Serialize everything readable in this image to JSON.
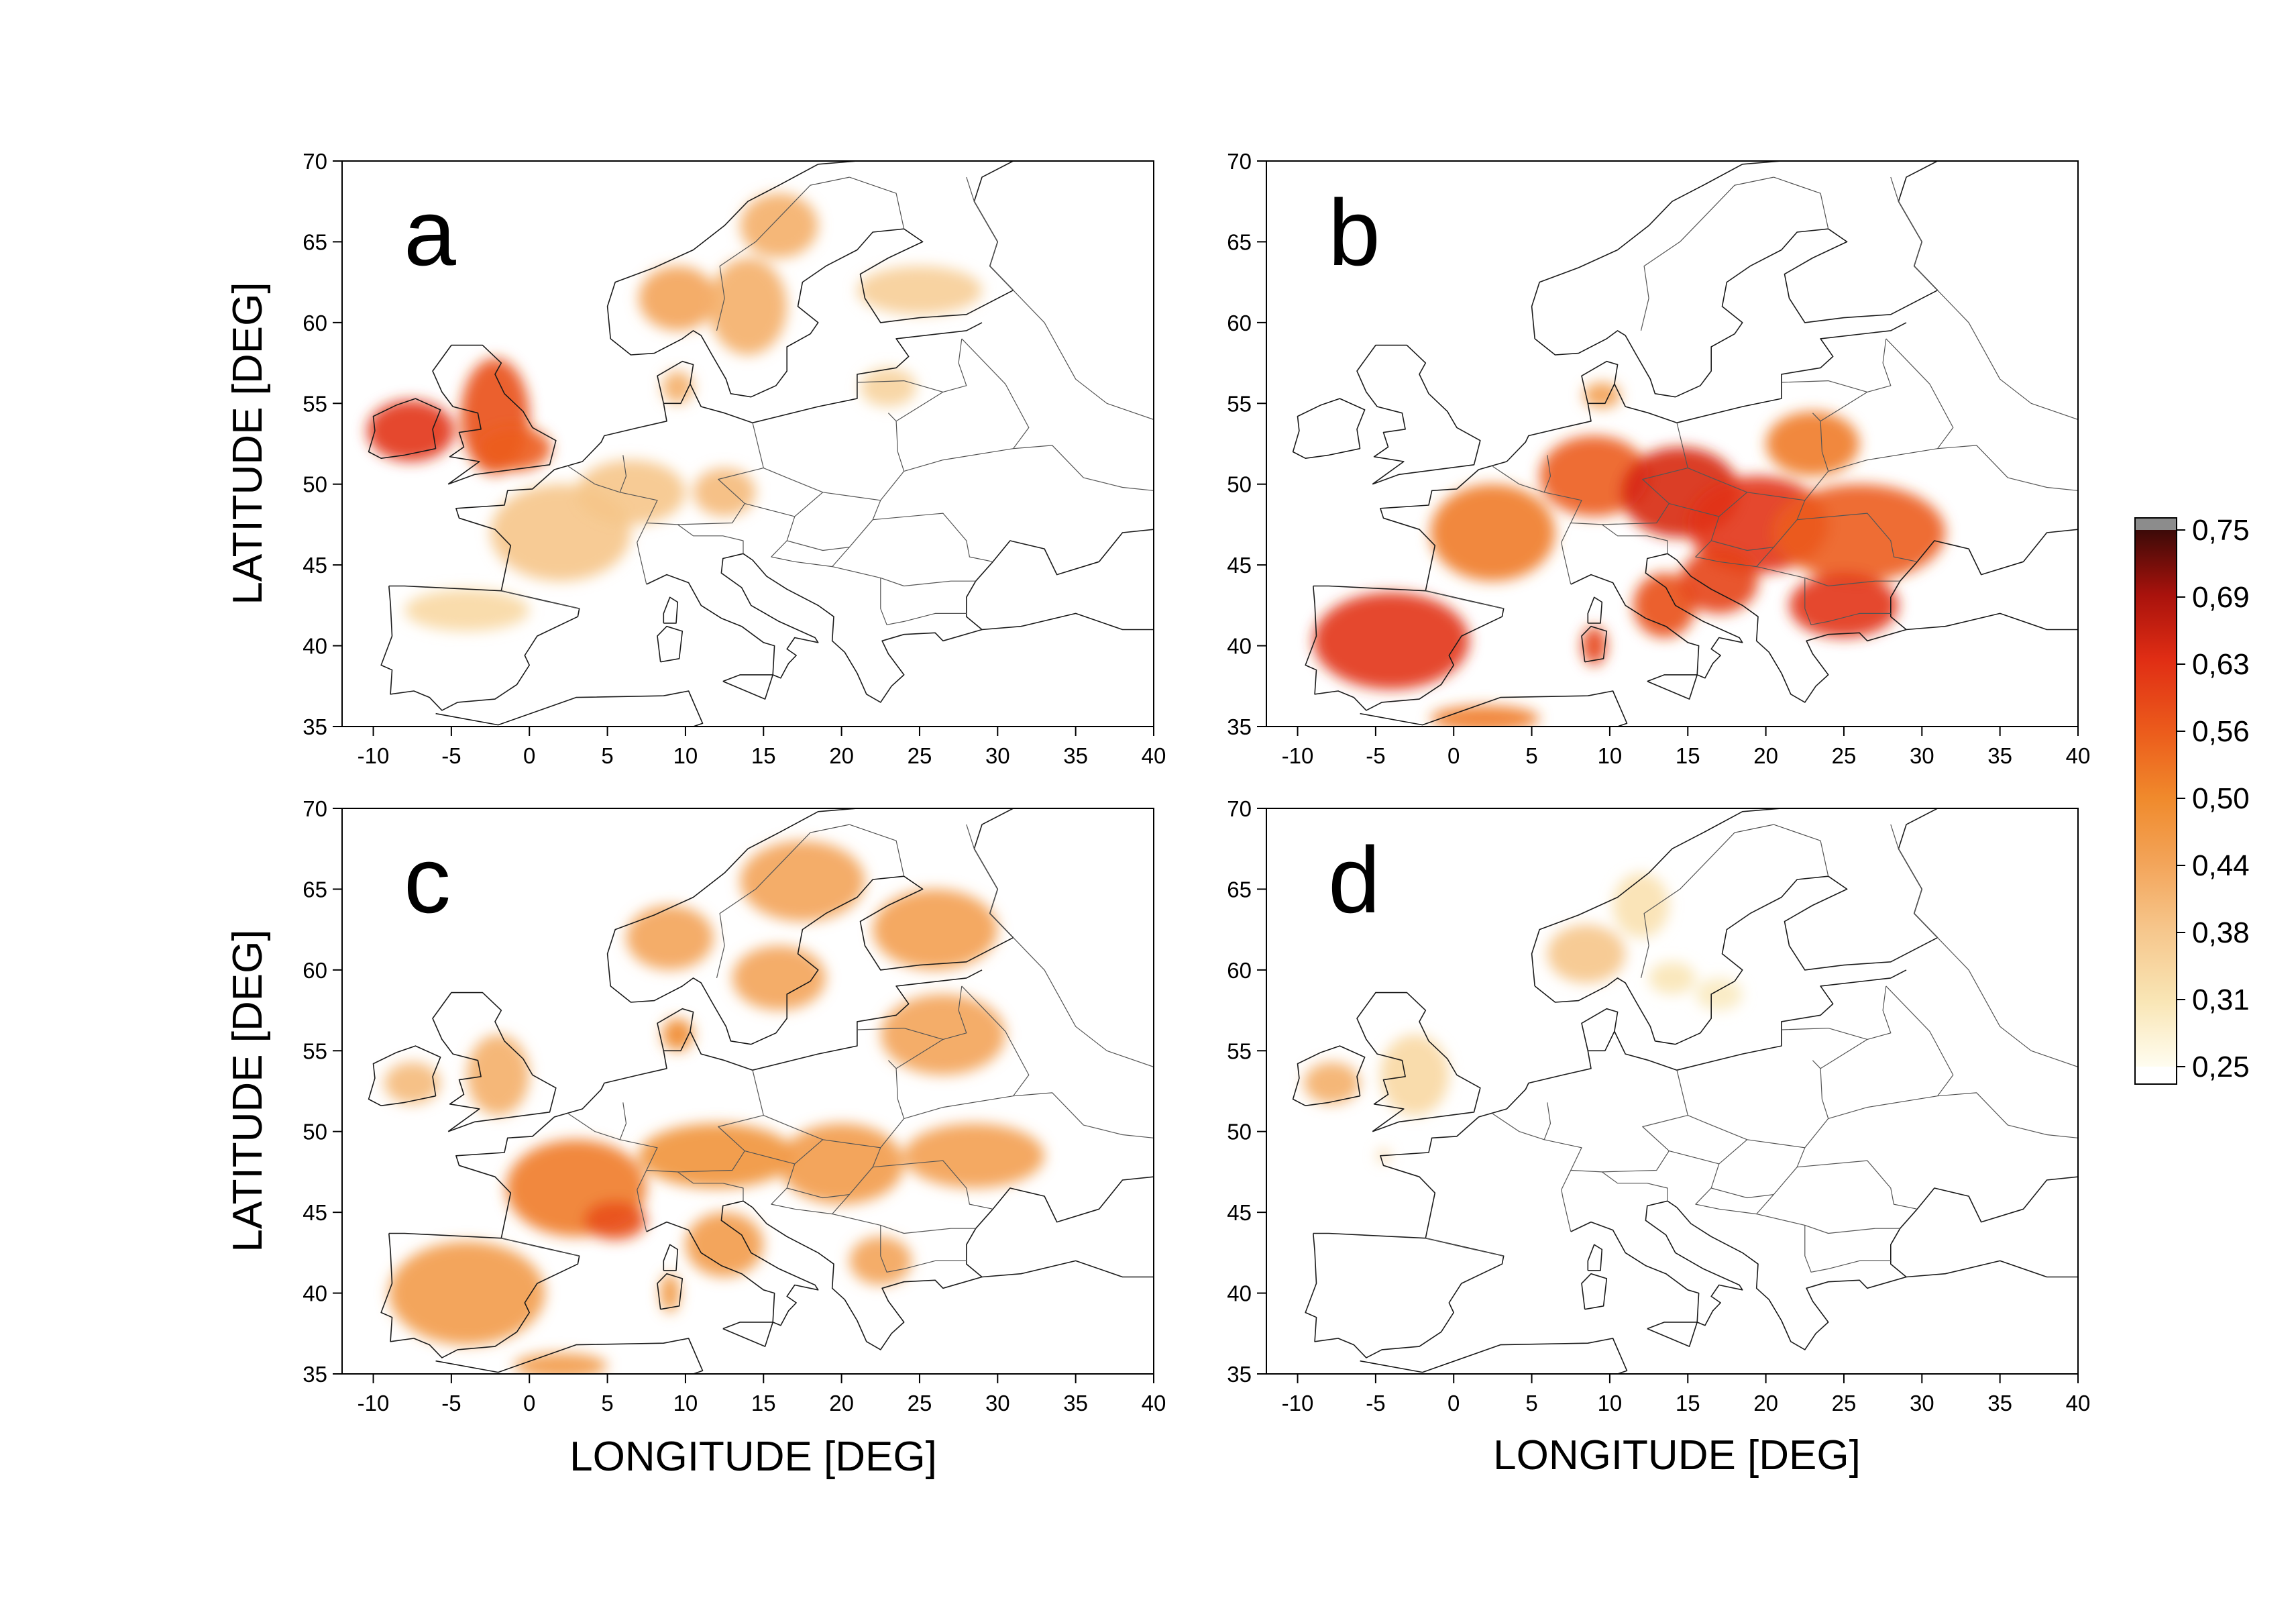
{
  "figure": {
    "x_axis_title": "LONGITUDE [DEG]",
    "y_axis_title": "LATITUDE [DEG]",
    "x_ticks": [
      -10,
      -5,
      0,
      5,
      10,
      15,
      20,
      25,
      30,
      35,
      40
    ],
    "x_tick_labels": [
      "-10",
      "-5",
      "0",
      "5",
      "10",
      "15",
      "20",
      "25",
      "30",
      "35",
      "40"
    ],
    "y_ticks": [
      35,
      40,
      45,
      50,
      55,
      60,
      65,
      70
    ],
    "y_tick_labels": [
      "35",
      "40",
      "45",
      "50",
      "55",
      "60",
      "65",
      "70"
    ],
    "xlim": [
      -12,
      40
    ],
    "ylim": [
      35,
      70
    ]
  },
  "panels": [
    {
      "letter": "a",
      "blobs": [
        {
          "lon": -7.6,
          "lat": 53.3,
          "rlon": 2.8,
          "rlat": 1.9,
          "value": 0.62
        },
        {
          "lon": -2.2,
          "lat": 54.2,
          "rlon": 2.2,
          "rlat": 3.6,
          "value": 0.58
        },
        {
          "lon": -1.0,
          "lat": 52.2,
          "rlon": 2.4,
          "rlat": 1.4,
          "value": 0.56
        },
        {
          "lon": 2.0,
          "lat": 47.0,
          "rlon": 4.5,
          "rlat": 3.0,
          "value": 0.38
        },
        {
          "lon": 6.5,
          "lat": 49.5,
          "rlon": 3.5,
          "rlat": 2.0,
          "value": 0.38
        },
        {
          "lon": -4.0,
          "lat": 42.2,
          "rlon": 4.0,
          "rlat": 1.3,
          "value": 0.34
        },
        {
          "lon": 12.5,
          "lat": 49.5,
          "rlon": 2.0,
          "rlat": 1.5,
          "value": 0.4
        },
        {
          "lon": 9.5,
          "lat": 61.5,
          "rlon": 2.5,
          "rlat": 2.0,
          "value": 0.44
        },
        {
          "lon": 14.0,
          "lat": 61.0,
          "rlon": 2.5,
          "rlat": 3.0,
          "value": 0.42
        },
        {
          "lon": 16.0,
          "lat": 66.0,
          "rlon": 2.5,
          "rlat": 2.0,
          "value": 0.42
        },
        {
          "lon": 25.0,
          "lat": 62.0,
          "rlon": 4.0,
          "rlat": 1.5,
          "value": 0.36
        },
        {
          "lon": 23.0,
          "lat": 56.0,
          "rlon": 1.8,
          "rlat": 1.2,
          "value": 0.35
        },
        {
          "lon": 9.5,
          "lat": 56.0,
          "rlon": 1.0,
          "rlat": 1.0,
          "value": 0.42
        }
      ]
    },
    {
      "letter": "b",
      "blobs": [
        {
          "lon": -4.0,
          "lat": 40.3,
          "rlon": 5.0,
          "rlat": 3.0,
          "value": 0.62
        },
        {
          "lon": 2.5,
          "lat": 47.0,
          "rlon": 4.0,
          "rlat": 3.0,
          "value": 0.52
        },
        {
          "lon": 9.0,
          "lat": 50.5,
          "rlon": 3.5,
          "rlat": 2.5,
          "value": 0.56
        },
        {
          "lon": 14.5,
          "lat": 49.5,
          "rlon": 3.8,
          "rlat": 2.8,
          "value": 0.64
        },
        {
          "lon": 19.5,
          "lat": 47.5,
          "rlon": 4.5,
          "rlat": 3.0,
          "value": 0.62
        },
        {
          "lon": 26.0,
          "lat": 47.0,
          "rlon": 5.5,
          "rlat": 3.0,
          "value": 0.56
        },
        {
          "lon": 25.0,
          "lat": 42.5,
          "rlon": 3.5,
          "rlat": 2.0,
          "value": 0.62
        },
        {
          "lon": 13.5,
          "lat": 42.5,
          "rlon": 2.0,
          "rlat": 2.0,
          "value": 0.58
        },
        {
          "lon": 17.0,
          "lat": 44.0,
          "rlon": 2.5,
          "rlat": 2.0,
          "value": 0.6
        },
        {
          "lon": 23.0,
          "lat": 52.5,
          "rlon": 3.0,
          "rlat": 2.0,
          "value": 0.52
        },
        {
          "lon": 9.0,
          "lat": 40.0,
          "rlon": 0.8,
          "rlat": 1.2,
          "value": 0.6
        },
        {
          "lon": 2.0,
          "lat": 35.5,
          "rlon": 3.5,
          "rlat": 0.8,
          "value": 0.52
        },
        {
          "lon": 9.5,
          "lat": 55.5,
          "rlon": 1.2,
          "rlat": 0.8,
          "value": 0.45
        }
      ]
    },
    {
      "letter": "c",
      "blobs": [
        {
          "lon": -4.0,
          "lat": 40.0,
          "rlon": 5.0,
          "rlat": 3.2,
          "value": 0.46
        },
        {
          "lon": 3.0,
          "lat": 46.5,
          "rlon": 4.5,
          "rlat": 3.0,
          "value": 0.52
        },
        {
          "lon": 5.5,
          "lat": 44.5,
          "rlon": 2.0,
          "rlat": 1.2,
          "value": 0.58
        },
        {
          "lon": 12.0,
          "lat": 48.5,
          "rlon": 5.0,
          "rlat": 2.0,
          "value": 0.48
        },
        {
          "lon": 20.0,
          "lat": 48.0,
          "rlon": 4.0,
          "rlat": 2.5,
          "value": 0.46
        },
        {
          "lon": 28.5,
          "lat": 48.5,
          "rlon": 4.5,
          "rlat": 2.0,
          "value": 0.45
        },
        {
          "lon": 12.5,
          "lat": 43.0,
          "rlon": 2.5,
          "rlat": 2.0,
          "value": 0.46
        },
        {
          "lon": 22.5,
          "lat": 42.0,
          "rlon": 2.0,
          "rlat": 1.5,
          "value": 0.44
        },
        {
          "lon": -2.0,
          "lat": 53.5,
          "rlon": 2.0,
          "rlat": 2.5,
          "value": 0.42
        },
        {
          "lon": -7.5,
          "lat": 53.0,
          "rlon": 1.8,
          "rlat": 1.3,
          "value": 0.4
        },
        {
          "lon": 9.0,
          "lat": 62.0,
          "rlon": 2.8,
          "rlat": 2.0,
          "value": 0.44
        },
        {
          "lon": 16.0,
          "lat": 59.5,
          "rlon": 3.0,
          "rlat": 2.0,
          "value": 0.44
        },
        {
          "lon": 17.5,
          "lat": 65.5,
          "rlon": 4.0,
          "rlat": 2.5,
          "value": 0.44
        },
        {
          "lon": 26.0,
          "lat": 62.5,
          "rlon": 4.0,
          "rlat": 2.5,
          "value": 0.45
        },
        {
          "lon": 26.5,
          "lat": 56.0,
          "rlon": 4.0,
          "rlat": 2.5,
          "value": 0.44
        },
        {
          "lon": 9.0,
          "lat": 40.0,
          "rlon": 0.6,
          "rlat": 1.2,
          "value": 0.48
        },
        {
          "lon": 2.0,
          "lat": 35.5,
          "rlon": 3.0,
          "rlat": 0.8,
          "value": 0.46
        },
        {
          "lon": 9.5,
          "lat": 56.0,
          "rlon": 1.0,
          "rlat": 1.0,
          "value": 0.5
        }
      ]
    },
    {
      "letter": "d",
      "blobs": [
        {
          "lon": -7.8,
          "lat": 53.0,
          "rlon": 1.8,
          "rlat": 1.3,
          "value": 0.42
        },
        {
          "lon": -2.5,
          "lat": 53.5,
          "rlon": 2.2,
          "rlat": 2.5,
          "value": 0.34
        },
        {
          "lon": 8.5,
          "lat": 61.0,
          "rlon": 2.5,
          "rlat": 1.8,
          "value": 0.38
        },
        {
          "lon": 12.0,
          "lat": 64.0,
          "rlon": 1.8,
          "rlat": 2.0,
          "value": 0.32
        },
        {
          "lon": 14.0,
          "lat": 59.5,
          "rlon": 1.5,
          "rlat": 1.0,
          "value": 0.31
        },
        {
          "lon": 17.0,
          "lat": 58.5,
          "rlon": 1.5,
          "rlat": 1.0,
          "value": 0.3
        },
        {
          "lon": -4.5,
          "lat": 48.5,
          "rlon": 0.4,
          "rlat": 0.4,
          "value": 0.35
        }
      ]
    }
  ],
  "colorbar": {
    "labels": [
      "0,75",
      "0,69",
      "0,63",
      "0,56",
      "0,50",
      "0,44",
      "0,38",
      "0,31",
      "0,25"
    ],
    "min": 0.25,
    "max": 0.75,
    "over_color": "#8c8c8c",
    "under_color": "#ffffff",
    "stops": [
      {
        "v": 0.25,
        "color": "#fffdf0"
      },
      {
        "v": 0.31,
        "color": "#f9e6b6"
      },
      {
        "v": 0.38,
        "color": "#f6c58a"
      },
      {
        "v": 0.44,
        "color": "#f3a459"
      },
      {
        "v": 0.5,
        "color": "#f08a2c"
      },
      {
        "v": 0.56,
        "color": "#ec5d1c"
      },
      {
        "v": 0.63,
        "color": "#e02d14"
      },
      {
        "v": 0.69,
        "color": "#a8120c"
      },
      {
        "v": 0.75,
        "color": "#3c0a08"
      }
    ]
  }
}
